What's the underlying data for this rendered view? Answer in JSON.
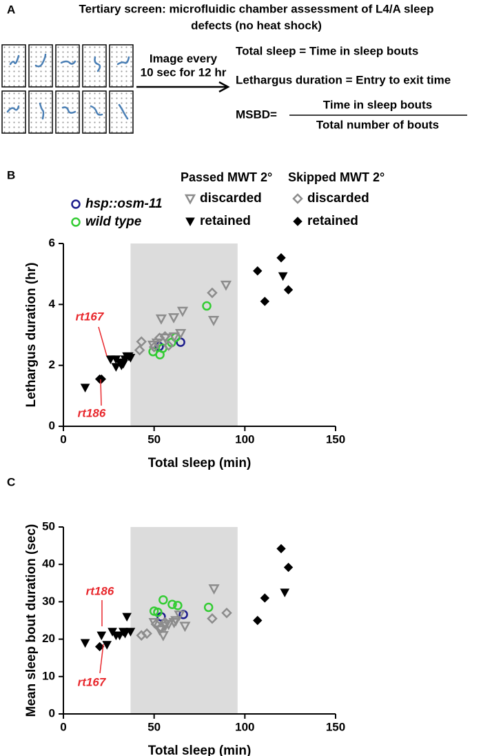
{
  "panel_a": {
    "label": "A",
    "title_lines": [
      "Tertiary screen: microfluidic chamber assessment of L4/A sleep",
      "defects (no heat shock)"
    ],
    "arrow_lines": [
      "Image every",
      "10 sec for 12 hr"
    ],
    "definitions": [
      "Total sleep = Time in sleep bouts",
      "Lethargus duration = Entry to exit time"
    ],
    "msbd": {
      "lhs": "MSBD=",
      "numerator": "Time in sleep bouts",
      "denominator": "Total number of bouts"
    }
  },
  "chart_data": [
    {
      "type": "scatter",
      "panel_label": "B",
      "x_label": "Total sleep (min)",
      "y_label": "Lethargus duration (hr)",
      "xlim": [
        0,
        150
      ],
      "xticks": [
        0,
        50,
        100,
        150
      ],
      "ylim": [
        0,
        6
      ],
      "yticks": [
        0,
        2,
        4,
        6
      ],
      "highlight_x": [
        37,
        96
      ],
      "highlight_color": "#dcdcdc",
      "legend": true,
      "legend_titles": [
        "Passed MWT 2°",
        "Skipped MWT 2°"
      ],
      "annotations": [
        "rt167",
        "rt186"
      ],
      "series": [
        {
          "name": "hsp::osm-11",
          "color": "#1c1c8c",
          "marker": "circle",
          "filled": false,
          "x": [
            52.8,
            64.6
          ],
          "values": [
            2.62,
            2.76
          ]
        },
        {
          "name": "wild type",
          "color": "#33cc33",
          "marker": "circle",
          "filled": false,
          "x": [
            49.4,
            53.2,
            54.7,
            59.6,
            61.9,
            79
          ],
          "values": [
            2.45,
            2.35,
            2.56,
            2.75,
            2.92,
            3.95
          ]
        },
        {
          "name": "discarded",
          "color": "#8c8c8c",
          "marker": "triangle-down",
          "filled": false,
          "x": [
            53.9,
            60.8,
            65.7,
            82.8,
            89.6,
            49.4,
            56.2,
            64.6,
            61.1,
            51.6
          ],
          "values": [
            3.53,
            3.57,
            3.78,
            3.48,
            4.64,
            2.67,
            2.9,
            3.05,
            2.94,
            2.74
          ]
        },
        {
          "name": "retained",
          "color": "#000000",
          "marker": "triangle-down",
          "filled": true,
          "x": [
            12,
            26,
            29,
            29,
            31,
            33,
            34,
            35,
            36,
            37,
            32,
            121
          ],
          "values": [
            1.27,
            2.2,
            2.2,
            1.95,
            2.1,
            2.05,
            2.2,
            2.3,
            2.3,
            2.25,
            2.0,
            4.93
          ]
        },
        {
          "name": "discarded",
          "color": "#8c8c8c",
          "marker": "diamond",
          "filled": false,
          "x": [
            42,
            43,
            53,
            56,
            58,
            82,
            50
          ],
          "values": [
            2.5,
            2.78,
            2.9,
            2.95,
            2.65,
            4.38,
            2.6
          ]
        },
        {
          "name": "retained",
          "color": "#000000",
          "marker": "diamond",
          "filled": true,
          "x": [
            20,
            21,
            107,
            111,
            120,
            124
          ],
          "values": [
            1.55,
            1.55,
            5.1,
            4.1,
            5.53,
            4.48
          ]
        }
      ]
    },
    {
      "type": "scatter",
      "panel_label": "C",
      "x_label": "Total sleep (min)",
      "y_label": "Mean sleep bout duration (sec)",
      "xlim": [
        0,
        150
      ],
      "xticks": [
        0,
        50,
        100,
        150
      ],
      "ylim": [
        0,
        50
      ],
      "yticks": [
        0,
        10,
        20,
        30,
        40,
        50
      ],
      "highlight_x": [
        37,
        96
      ],
      "highlight_color": "#dcdcdc",
      "legend": false,
      "annotations": [
        "rt186",
        "rt167"
      ],
      "series": [
        {
          "color": "#1c1c8c",
          "marker": "circle",
          "filled": false,
          "x": [
            53.9,
            66.1
          ],
          "values": [
            26,
            26.6
          ]
        },
        {
          "color": "#33cc33",
          "marker": "circle",
          "filled": false,
          "x": [
            50,
            52,
            55,
            60,
            63,
            80
          ],
          "values": [
            27.5,
            27.2,
            30.5,
            29.3,
            29,
            28.5
          ]
        },
        {
          "color": "#8c8c8c",
          "marker": "triangle-down",
          "filled": false,
          "x": [
            50,
            53,
            55,
            58,
            61,
            64,
            67,
            83,
            56,
            62
          ],
          "values": [
            24.5,
            22.5,
            21,
            24,
            24.5,
            26.5,
            23.5,
            33.5,
            23.5,
            25
          ]
        },
        {
          "color": "#000000",
          "marker": "triangle-down",
          "filled": true,
          "x": [
            12,
            21,
            24,
            27,
            29,
            31,
            33,
            34,
            35,
            37,
            122
          ],
          "values": [
            19,
            21,
            18.5,
            22,
            21,
            21,
            22,
            21.5,
            26,
            22,
            32.5
          ]
        },
        {
          "color": "#8c8c8c",
          "marker": "diamond",
          "filled": false,
          "x": [
            43,
            46,
            51,
            56,
            82,
            90,
            54
          ],
          "values": [
            21,
            21.5,
            24,
            24.5,
            25.5,
            27,
            23
          ]
        },
        {
          "color": "#000000",
          "marker": "diamond",
          "filled": true,
          "x": [
            20,
            107,
            111,
            120,
            124
          ],
          "values": [
            18,
            25,
            31,
            44.2,
            39.2
          ]
        }
      ]
    }
  ]
}
